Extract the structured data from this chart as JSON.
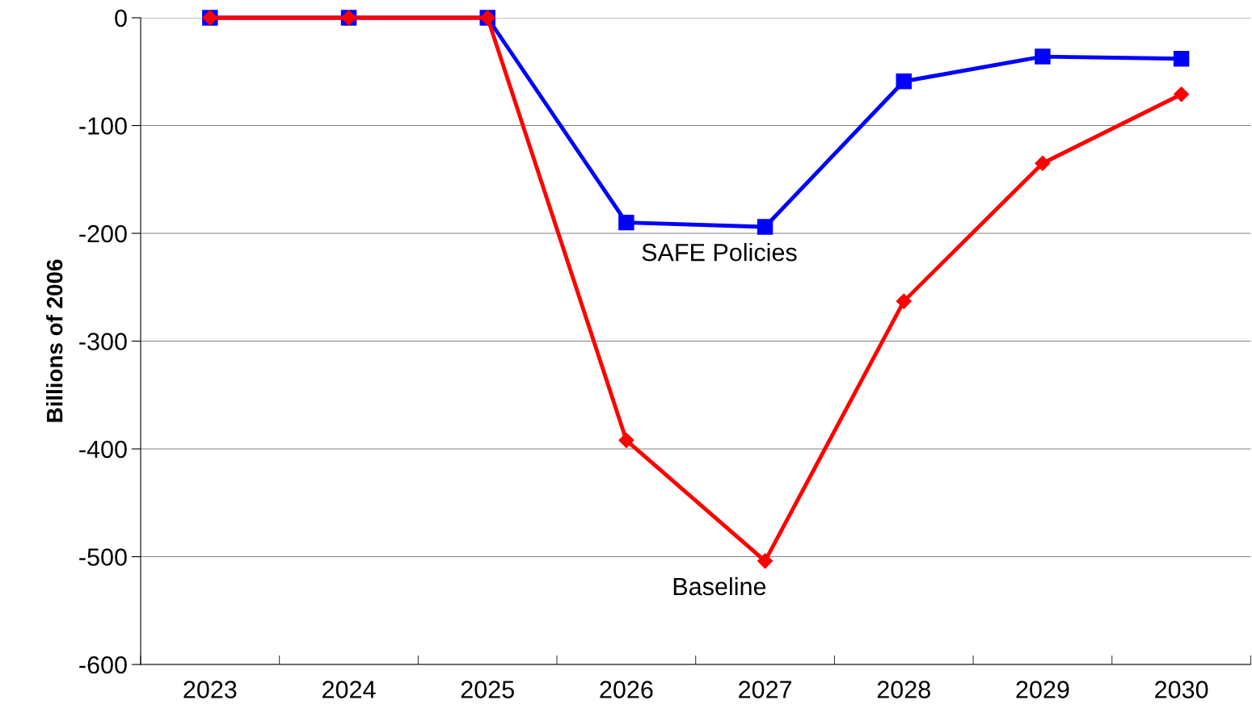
{
  "chart_data": {
    "type": "line",
    "ylabel": "Billions of 2006",
    "categories": [
      "2023",
      "2024",
      "2025",
      "2026",
      "2027",
      "2028",
      "2029",
      "2030"
    ],
    "series": [
      {
        "name": "SAFE Policies",
        "color": "#0000ff",
        "marker": "square",
        "values": [
          0,
          0,
          0,
          -190,
          -194,
          -59,
          -36,
          -38
        ]
      },
      {
        "name": "Baseline",
        "color": "#ff0000",
        "marker": "diamond",
        "values": [
          0,
          0,
          0,
          -392,
          -504,
          -263,
          -135,
          -71
        ]
      }
    ],
    "ylim": [
      -600,
      0
    ],
    "yticks": [
      -600,
      -500,
      -400,
      -300,
      -200,
      -100,
      0
    ],
    "grid": "y",
    "legend": false,
    "line_style": "solid"
  }
}
